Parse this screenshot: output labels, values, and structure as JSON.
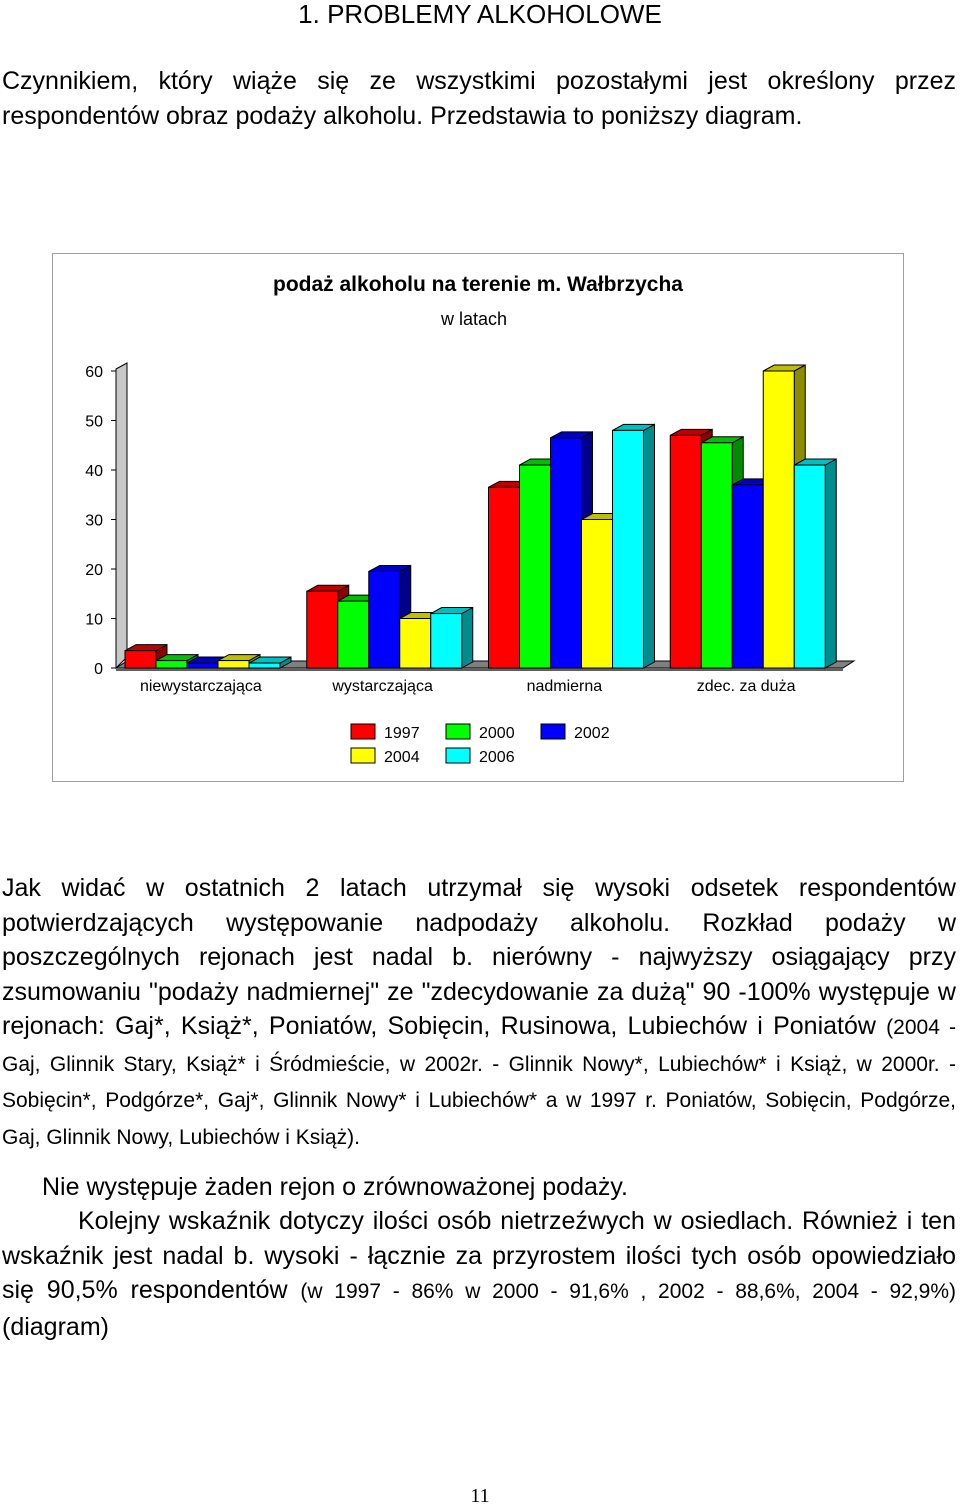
{
  "heading": "1. PROBLEMY ALKOHOLOWE",
  "intro": "Czynnikiem, który wiąże się ze wszystkimi pozostałymi jest określony przez respondentów obraz podaży alkoholu. Przedstawia to poniższy diagram.",
  "body": {
    "p1_main": "Jak widać w ostatnich 2 latach utrzymał się wysoki odsetek respondentów potwierdzających występowanie nadpodaży alkoholu. Rozkład podaży w poszczególnych rejonach jest nadal b. nierówny - najwyższy osiągający przy zsumowaniu \"podaży nadmiernej\" ze \"zdecydowanie za dużą\" 90 -100% występuje w rejonach: Gaj*, Książ*, Poniatów, Sobięcin, Rusinowa, Lubiechów i Poniatów",
    "p1_small": "(2004 - Gaj, Glinnik Stary, Książ* i Śródmieście, w 2002r. - Glinnik Nowy*, Lubiechów* i Książ, w 2000r. - Sobięcin*, Podgórze*, Gaj*, Glinnik Nowy* i Lubiechów* a w 1997 r. Poniatów, Sobięcin, Podgórze, Gaj, Glinnik Nowy, Lubiechów i Książ).",
    "p2": "Nie występuje żaden rejon o zrównoważonej podaży.",
    "p3_main": "Kolejny wskaźnik dotyczy ilości osób nietrzeźwych w osiedlach. Również i ten wskaźnik jest nadal b. wysoki - łącznie za przyrostem ilości tych osób opowiedziało się 90,5% respondentów",
    "p3_small": "(w 1997 - 86% w 2000 - 91,6% , 2002 - 88,6%, 2004 - 92,9%)",
    "p3_end": " (diagram)"
  },
  "page_number": "11",
  "chart_data": {
    "type": "bar",
    "style": "3d clustered columns",
    "title": "podaż alkoholu na terenie m. Wałbrzycha",
    "subtitle": "w latach",
    "categories": [
      "niewystarczająca",
      "wystarczająca",
      "nadmierna",
      "zdec. za duża"
    ],
    "ylim": [
      0,
      60
    ],
    "yticks": [
      "0",
      "10",
      "20",
      "30",
      "40",
      "50",
      "60"
    ],
    "grid": false,
    "legend_position": "bottom",
    "series": [
      {
        "name": "1997",
        "color": "#ff0000",
        "values": [
          3.5,
          15.5,
          36.5,
          47
        ]
      },
      {
        "name": "2000",
        "color": "#00ff00",
        "values": [
          1.5,
          13.5,
          41,
          45.5
        ]
      },
      {
        "name": "2002",
        "color": "#0000ff",
        "values": [
          1,
          19.5,
          46.5,
          37
        ]
      },
      {
        "name": "2004",
        "color": "#ffff00",
        "values": [
          1.5,
          10,
          30,
          60
        ]
      },
      {
        "name": "2006",
        "color": "#00ffff",
        "values": [
          1,
          11,
          48,
          41
        ]
      }
    ]
  }
}
